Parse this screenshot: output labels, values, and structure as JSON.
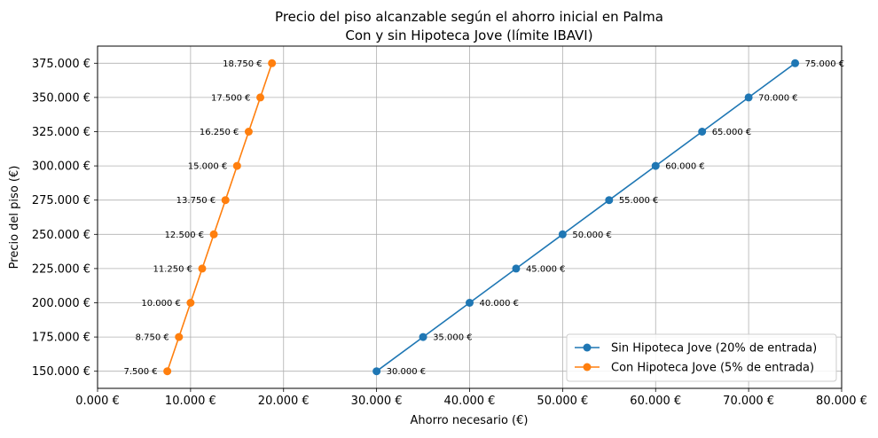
{
  "chart_data": {
    "type": "line",
    "title": "Precio del piso alcanzable según el ahorro inicial en Palma",
    "subtitle": "Con y sin Hipoteca Jove (límite IBAVI)",
    "xlabel": "Ahorro necesario (€)",
    "ylabel": "Precio del piso (€)",
    "xlim": [
      0,
      80000
    ],
    "ylim": [
      137500,
      387500
    ],
    "x_ticks": [
      0,
      10000,
      20000,
      30000,
      40000,
      50000,
      60000,
      70000,
      80000
    ],
    "x_tick_labels": [
      "0.000 €",
      "10.000 €",
      "20.000 €",
      "30.000 €",
      "40.000 €",
      "50.000 €",
      "60.000 €",
      "70.000 €",
      "80.000 €"
    ],
    "y_ticks": [
      150000,
      175000,
      200000,
      225000,
      250000,
      275000,
      300000,
      325000,
      350000,
      375000
    ],
    "y_tick_labels": [
      "150.000 €",
      "175.000 €",
      "200.000 €",
      "225.000 €",
      "250.000 €",
      "275.000 €",
      "300.000 €",
      "325.000 €",
      "350.000 €",
      "375.000 €"
    ],
    "grid": true,
    "legend_position": "lower-right",
    "series": [
      {
        "name": "Sin Hipoteca Jove (20% de entrada)",
        "color": "#1f77b4",
        "label_side": "right",
        "points": [
          {
            "x": 30000,
            "y": 150000,
            "label": "30.000 €"
          },
          {
            "x": 35000,
            "y": 175000,
            "label": "35.000 €"
          },
          {
            "x": 40000,
            "y": 200000,
            "label": "40.000 €"
          },
          {
            "x": 45000,
            "y": 225000,
            "label": "45.000 €"
          },
          {
            "x": 50000,
            "y": 250000,
            "label": "50.000 €"
          },
          {
            "x": 55000,
            "y": 275000,
            "label": "55.000 €"
          },
          {
            "x": 60000,
            "y": 300000,
            "label": "60.000 €"
          },
          {
            "x": 65000,
            "y": 325000,
            "label": "65.000 €"
          },
          {
            "x": 70000,
            "y": 350000,
            "label": "70.000 €"
          },
          {
            "x": 75000,
            "y": 375000,
            "label": "75.000 €"
          }
        ]
      },
      {
        "name": "Con Hipoteca Jove (5% de entrada)",
        "color": "#ff7f0e",
        "label_side": "left",
        "points": [
          {
            "x": 7500,
            "y": 150000,
            "label": "7.500 €"
          },
          {
            "x": 8750,
            "y": 175000,
            "label": "8.750 €"
          },
          {
            "x": 10000,
            "y": 200000,
            "label": "10.000 €"
          },
          {
            "x": 11250,
            "y": 225000,
            "label": "11.250 €"
          },
          {
            "x": 12500,
            "y": 250000,
            "label": "12.500 €"
          },
          {
            "x": 13750,
            "y": 275000,
            "label": "13.750 €"
          },
          {
            "x": 15000,
            "y": 300000,
            "label": "15.000 €"
          },
          {
            "x": 16250,
            "y": 325000,
            "label": "16.250 €"
          },
          {
            "x": 17500,
            "y": 350000,
            "label": "17.500 €"
          },
          {
            "x": 18750,
            "y": 375000,
            "label": "18.750 €"
          }
        ]
      }
    ]
  }
}
